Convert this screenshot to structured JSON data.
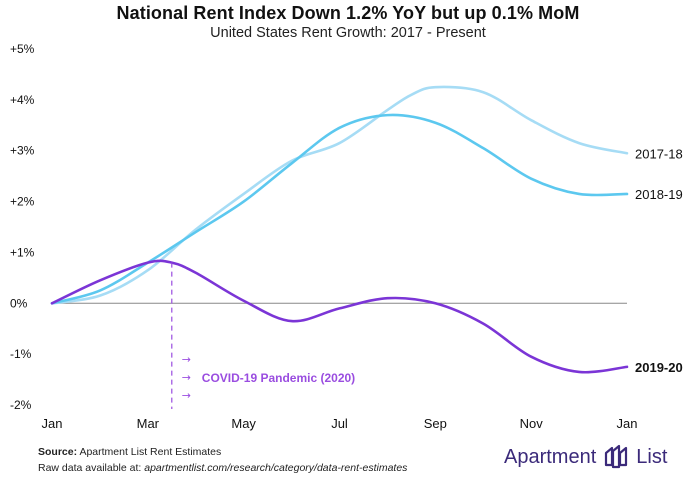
{
  "title": "National Rent Index Down 1.2% YoY but up 0.1% MoM",
  "subtitle": "United States Rent Growth: 2017 - Present",
  "footer": {
    "source_label": "Source:",
    "source_text": "Apartment List Rent Estimates",
    "raw_prefix": "Raw data available at: ",
    "raw_link": "apartmentlist.com/research/category/data-rent-estimates"
  },
  "logo": {
    "word_left": "Apartment",
    "word_right": "List"
  },
  "colors": {
    "s2017": "#a6dcf5",
    "s2018": "#5cc8ef",
    "s2019": "#7b35d6",
    "zero": "#888888",
    "annotation": "#9a4de0"
  },
  "chart_data": {
    "type": "line",
    "x_ticks": [
      "Jan",
      "Mar",
      "May",
      "Jul",
      "Sep",
      "Nov",
      "Jan"
    ],
    "y_ticks": [
      "+5%",
      "+4%",
      "+3%",
      "+2%",
      "+1%",
      "0%",
      "-1%",
      "-2%"
    ],
    "ylim": [
      -2,
      5
    ],
    "xlim": [
      0,
      12
    ],
    "series": [
      {
        "name": "2017-18",
        "color_key": "s2017",
        "bold": false,
        "x": [
          0,
          1,
          2,
          3,
          4,
          5,
          6,
          7,
          7.5,
          8,
          9,
          10,
          11,
          12
        ],
        "y": [
          0,
          0.15,
          0.65,
          1.45,
          2.15,
          2.8,
          3.15,
          3.8,
          4.1,
          4.25,
          4.15,
          3.6,
          3.15,
          2.95
        ]
      },
      {
        "name": "2018-19",
        "color_key": "s2018",
        "bold": false,
        "x": [
          0,
          1,
          2,
          3,
          4,
          5,
          6,
          7,
          8,
          9,
          10,
          11,
          12
        ],
        "y": [
          0,
          0.25,
          0.8,
          1.4,
          2.0,
          2.75,
          3.45,
          3.7,
          3.55,
          3.05,
          2.45,
          2.15,
          2.15
        ]
      },
      {
        "name": "2019-20",
        "color_key": "s2019",
        "bold": true,
        "x": [
          0,
          1,
          2,
          2.5,
          3,
          4,
          5,
          6,
          7,
          8,
          9,
          10,
          11,
          12
        ],
        "y": [
          0,
          0.45,
          0.8,
          0.8,
          0.6,
          0.05,
          -0.35,
          -0.1,
          0.1,
          0.0,
          -0.4,
          -1.05,
          -1.35,
          -1.25
        ]
      }
    ],
    "annotation": {
      "text": "COVID-19 Pandemic (2020)",
      "x": 2.5,
      "y": 0.8
    }
  }
}
